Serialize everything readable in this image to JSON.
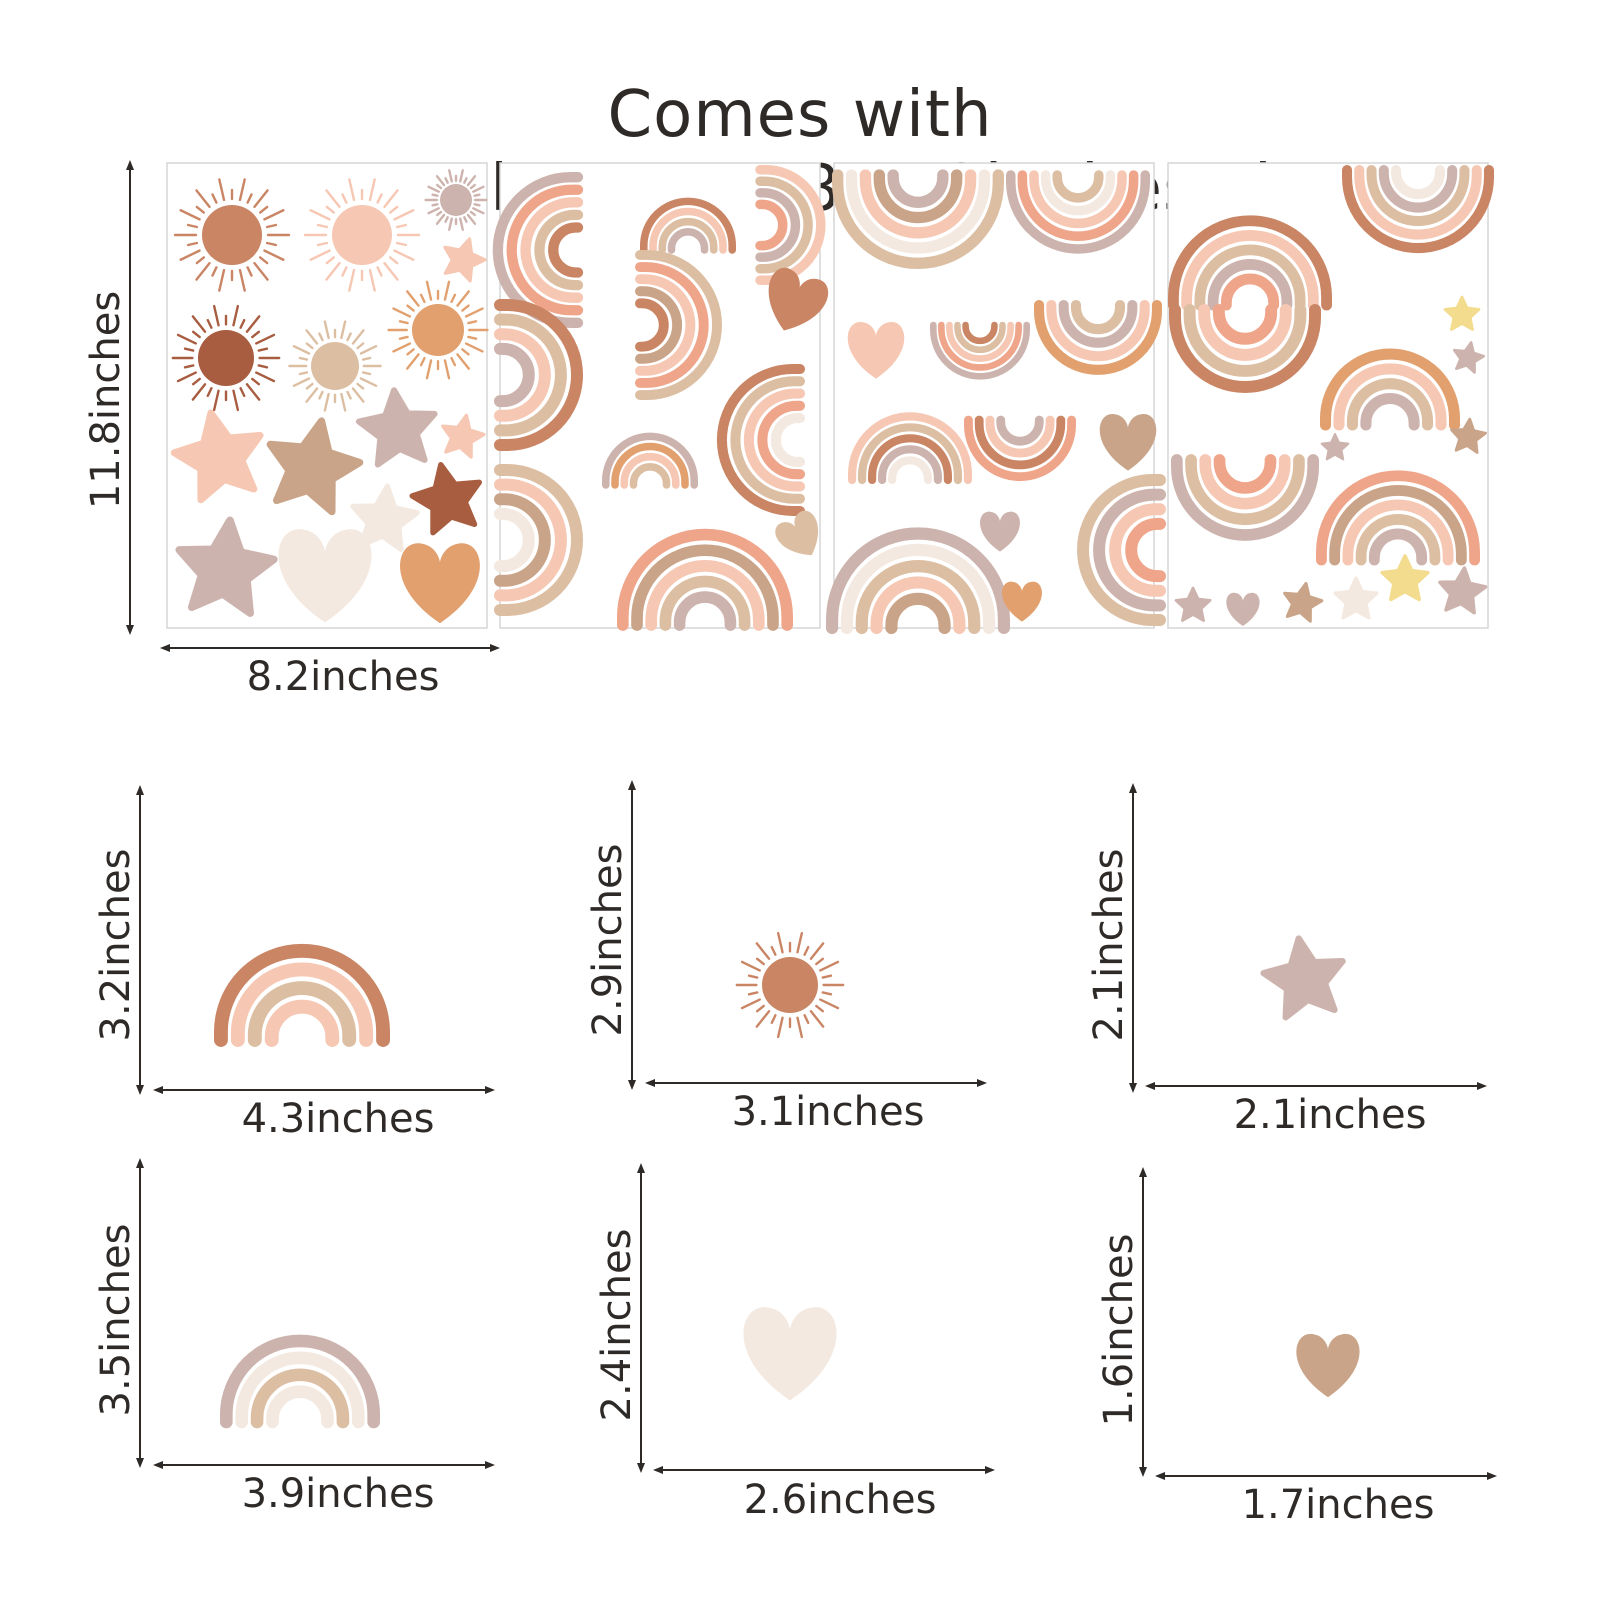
{
  "title": "Comes with 55pcs,4sheets,11.8x8.2inches/sheet",
  "sheet_dimensions": {
    "height": "11.8inches",
    "width": "8.2inches"
  },
  "items": [
    {
      "shape": "rainbow",
      "height": "3.2inches",
      "width": "4.3inches"
    },
    {
      "shape": "sun",
      "height": "2.9inches",
      "width": "3.1inches"
    },
    {
      "shape": "star",
      "height": "2.1inches",
      "width": "2.1inches"
    },
    {
      "shape": "rainbow",
      "height": "3.5inches",
      "width": "3.9inches"
    },
    {
      "shape": "heart",
      "height": "2.4inches",
      "width": "2.6inches"
    },
    {
      "shape": "heart",
      "height": "1.6inches",
      "width": "1.7inches"
    }
  ],
  "palette": {
    "terracotta": "#c98564",
    "blush": "#f6c7b3",
    "sand": "#dcbfa3",
    "mauve": "#cdb3ad",
    "peach": "#efa58a",
    "cream": "#f4e9e0",
    "rust": "#a85c40",
    "tan": "#c9a488",
    "butter": "#f3dc8e",
    "apricot": "#e1a06e"
  }
}
